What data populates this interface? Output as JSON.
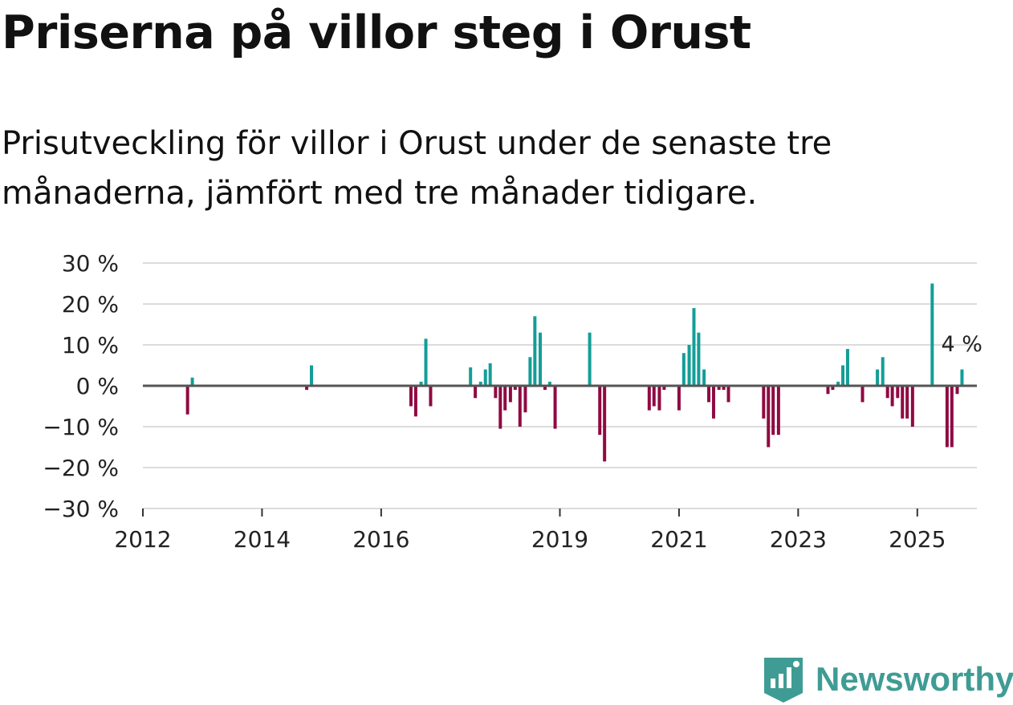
{
  "title": "Priserna på villor steg i Orust",
  "subtitle": "Prisutveckling för villor i Orust under de senaste tre månaderna, jämfört med tre månader tidigare.",
  "brand": {
    "name": "Newsworthy",
    "icon": "newsworthy-logo-icon"
  },
  "colors": {
    "positive": "#139e97",
    "negative": "#8f0a43",
    "grid": "#dcdcdc",
    "zero_line": "#555555",
    "text": "#222222",
    "brand": "#3f9c94"
  },
  "chart_data": {
    "type": "bar",
    "ylim": [
      -30,
      30
    ],
    "yticks": [
      30,
      20,
      10,
      0,
      -10,
      -20,
      -30
    ],
    "ytick_labels": [
      "30 %",
      "20 %",
      "10 %",
      "0 %",
      "−10 %",
      "−20 %",
      "−30 %"
    ],
    "xlim": [
      2012,
      2026.0
    ],
    "xticks": [
      2012,
      2014,
      2016,
      2019,
      2021,
      2023,
      2025
    ],
    "xtick_labels": [
      "2012",
      "2014",
      "2016",
      "2019",
      "2021",
      "2023",
      "2025"
    ],
    "annotation": {
      "x": 2025.75,
      "value": 4,
      "label": "4 %"
    },
    "series": [
      {
        "name": "Prisutveckling",
        "points": [
          {
            "x": 2012.75,
            "v": -7
          },
          {
            "x": 2012.83,
            "v": 2
          },
          {
            "x": 2014.75,
            "v": -1
          },
          {
            "x": 2014.83,
            "v": 5
          },
          {
            "x": 2016.5,
            "v": -5
          },
          {
            "x": 2016.58,
            "v": -7.5
          },
          {
            "x": 2016.67,
            "v": 1
          },
          {
            "x": 2016.75,
            "v": 11.5
          },
          {
            "x": 2016.83,
            "v": -5
          },
          {
            "x": 2017.5,
            "v": 4.5
          },
          {
            "x": 2017.58,
            "v": -3
          },
          {
            "x": 2017.67,
            "v": 1
          },
          {
            "x": 2017.75,
            "v": 4
          },
          {
            "x": 2017.83,
            "v": 5.5
          },
          {
            "x": 2017.92,
            "v": -3
          },
          {
            "x": 2018.0,
            "v": -10.5
          },
          {
            "x": 2018.08,
            "v": -6
          },
          {
            "x": 2018.17,
            "v": -4
          },
          {
            "x": 2018.25,
            "v": -1
          },
          {
            "x": 2018.33,
            "v": -10
          },
          {
            "x": 2018.42,
            "v": -6.5
          },
          {
            "x": 2018.5,
            "v": 7
          },
          {
            "x": 2018.58,
            "v": 17
          },
          {
            "x": 2018.67,
            "v": 13
          },
          {
            "x": 2018.75,
            "v": -1
          },
          {
            "x": 2018.83,
            "v": 1
          },
          {
            "x": 2018.92,
            "v": -10.5
          },
          {
            "x": 2019.5,
            "v": 13
          },
          {
            "x": 2019.67,
            "v": -12
          },
          {
            "x": 2019.75,
            "v": -18.5
          },
          {
            "x": 2020.5,
            "v": -6
          },
          {
            "x": 2020.58,
            "v": -5
          },
          {
            "x": 2020.67,
            "v": -6
          },
          {
            "x": 2020.75,
            "v": -1
          },
          {
            "x": 2021.0,
            "v": -6
          },
          {
            "x": 2021.08,
            "v": 8
          },
          {
            "x": 2021.17,
            "v": 10
          },
          {
            "x": 2021.25,
            "v": 19
          },
          {
            "x": 2021.33,
            "v": 13
          },
          {
            "x": 2021.42,
            "v": 4
          },
          {
            "x": 2021.5,
            "v": -4
          },
          {
            "x": 2021.58,
            "v": -8
          },
          {
            "x": 2021.67,
            "v": -1
          },
          {
            "x": 2021.75,
            "v": -1
          },
          {
            "x": 2021.83,
            "v": -4
          },
          {
            "x": 2022.42,
            "v": -8
          },
          {
            "x": 2022.5,
            "v": -15
          },
          {
            "x": 2022.58,
            "v": -12
          },
          {
            "x": 2022.67,
            "v": -12
          },
          {
            "x": 2023.5,
            "v": -2
          },
          {
            "x": 2023.58,
            "v": -1
          },
          {
            "x": 2023.67,
            "v": 1
          },
          {
            "x": 2023.75,
            "v": 5
          },
          {
            "x": 2023.83,
            "v": 9
          },
          {
            "x": 2024.08,
            "v": -4
          },
          {
            "x": 2024.33,
            "v": 4
          },
          {
            "x": 2024.42,
            "v": 7
          },
          {
            "x": 2024.5,
            "v": -3
          },
          {
            "x": 2024.58,
            "v": -5
          },
          {
            "x": 2024.67,
            "v": -3
          },
          {
            "x": 2024.75,
            "v": -8
          },
          {
            "x": 2024.83,
            "v": -8
          },
          {
            "x": 2024.92,
            "v": -10
          },
          {
            "x": 2025.25,
            "v": 25
          },
          {
            "x": 2025.5,
            "v": -15
          },
          {
            "x": 2025.58,
            "v": -15
          },
          {
            "x": 2025.67,
            "v": -2
          },
          {
            "x": 2025.75,
            "v": 4
          }
        ]
      }
    ]
  }
}
